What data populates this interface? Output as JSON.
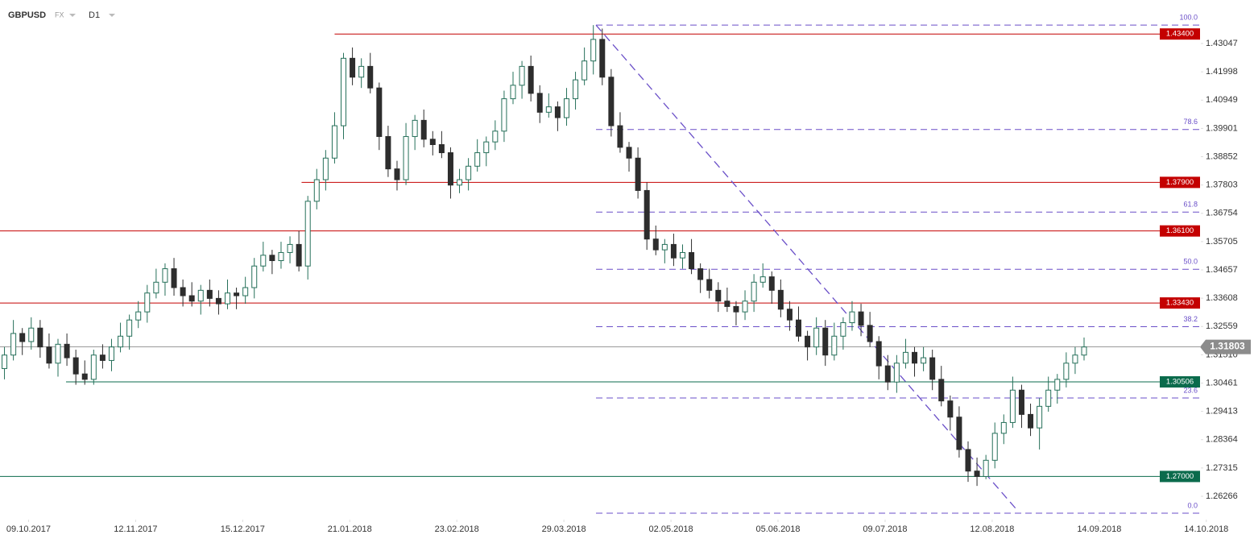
{
  "header": {
    "symbol": "GBPUSD",
    "market": "FX",
    "interval": "D1"
  },
  "chart_data": {
    "type": "candlestick",
    "up_color": "#26705a",
    "down_color": "#2d2d2d",
    "xlim": [
      -0.5,
      134.9
    ],
    "xticks": [
      {
        "value": 2.7,
        "label": "09.10.2017"
      },
      {
        "value": 14.7,
        "label": "12.11.2017"
      },
      {
        "value": 26.7,
        "label": "15.12.2017"
      },
      {
        "value": 38.7,
        "label": "21.01.2018"
      },
      {
        "value": 50.7,
        "label": "23.02.2018"
      },
      {
        "value": 62.7,
        "label": "29.03.2018"
      },
      {
        "value": 74.7,
        "label": "02.05.2018"
      },
      {
        "value": 86.7,
        "label": "05.06.2018"
      },
      {
        "value": 98.7,
        "label": "09.07.2018"
      },
      {
        "value": 110.7,
        "label": "12.08.2018"
      },
      {
        "value": 122.7,
        "label": "14.09.2018"
      },
      {
        "value": 134.7,
        "label": "14.10.2018"
      }
    ],
    "ylim": [
      1.254,
      1.4466
    ],
    "yticks": [
      1.43047,
      1.41998,
      1.40949,
      1.39901,
      1.38852,
      1.37803,
      1.36754,
      1.35705,
      1.34657,
      1.33608,
      1.32559,
      {
        "value": 1.3151,
        "label": "1.31510"
      },
      1.30461,
      1.29413,
      1.28364,
      1.27315,
      1.26266
    ],
    "open": [
      1.31,
      1.315,
      1.323,
      1.32,
      1.325,
      1.318,
      1.312,
      1.319,
      1.314,
      1.308,
      1.306,
      1.315,
      1.313,
      1.318,
      1.322,
      1.328,
      1.331,
      1.338,
      1.342,
      1.347,
      1.34,
      1.337,
      1.335,
      1.339,
      1.336,
      1.334,
      1.338,
      1.337,
      1.34,
      1.348,
      1.352,
      1.35,
      1.353,
      1.356,
      1.348,
      1.372,
      1.38,
      1.388,
      1.4,
      1.425,
      1.418,
      1.422,
      1.414,
      1.396,
      1.384,
      1.38,
      1.396,
      1.402,
      1.395,
      1.393,
      1.39,
      1.378,
      1.38,
      1.385,
      1.39,
      1.394,
      1.398,
      1.41,
      1.415,
      1.422,
      1.412,
      1.405,
      1.407,
      1.403,
      1.41,
      1.417,
      1.424,
      1.432,
      1.418,
      1.4,
      1.392,
      1.388,
      1.376,
      1.358,
      1.354,
      1.356,
      1.351,
      1.353,
      1.347,
      1.343,
      1.339,
      1.335,
      1.333,
      1.331,
      1.335,
      1.342,
      1.344,
      1.339,
      1.332,
      1.328,
      1.322,
      1.318,
      1.325,
      1.315,
      1.322,
      1.327,
      1.331,
      1.326,
      1.32,
      1.311,
      1.305,
      1.312,
      1.316,
      1.312,
      1.314,
      1.306,
      1.298,
      1.292,
      1.28,
      1.272,
      1.27,
      1.276,
      1.286,
      1.29,
      1.302,
      1.293,
      1.288,
      1.296,
      1.302,
      1.306,
      1.312,
      1.315
    ],
    "high": [
      1.318,
      1.328,
      1.325,
      1.329,
      1.328,
      1.323,
      1.321,
      1.323,
      1.317,
      1.313,
      1.317,
      1.319,
      1.321,
      1.327,
      1.33,
      1.335,
      1.341,
      1.347,
      1.349,
      1.351,
      1.343,
      1.342,
      1.341,
      1.343,
      1.339,
      1.343,
      1.34,
      1.344,
      1.351,
      1.357,
      1.354,
      1.357,
      1.359,
      1.361,
      1.374,
      1.384,
      1.391,
      1.405,
      1.427,
      1.429,
      1.425,
      1.427,
      1.416,
      1.4,
      1.387,
      1.401,
      1.404,
      1.406,
      1.398,
      1.398,
      1.392,
      1.384,
      1.388,
      1.395,
      1.396,
      1.402,
      1.413,
      1.42,
      1.424,
      1.426,
      1.415,
      1.412,
      1.409,
      1.414,
      1.42,
      1.429,
      1.4373,
      1.436,
      1.421,
      1.405,
      1.394,
      1.392,
      1.379,
      1.363,
      1.358,
      1.36,
      1.356,
      1.358,
      1.349,
      1.347,
      1.342,
      1.34,
      1.335,
      1.339,
      1.345,
      1.349,
      1.346,
      1.343,
      1.335,
      1.333,
      1.324,
      1.329,
      1.328,
      1.327,
      1.329,
      1.335,
      1.334,
      1.331,
      1.322,
      1.315,
      1.315,
      1.321,
      1.318,
      1.318,
      1.317,
      1.311,
      1.3,
      1.296,
      1.283,
      1.277,
      1.278,
      1.29,
      1.293,
      1.307,
      1.304,
      1.297,
      1.299,
      1.307,
      1.308,
      1.316,
      1.318,
      1.3215
    ],
    "low": [
      1.306,
      1.313,
      1.315,
      1.317,
      1.314,
      1.31,
      1.307,
      1.311,
      1.304,
      1.304,
      1.304,
      1.31,
      1.309,
      1.316,
      1.317,
      1.325,
      1.327,
      1.336,
      1.337,
      1.337,
      1.333,
      1.333,
      1.33,
      1.333,
      1.33,
      1.332,
      1.332,
      1.334,
      1.336,
      1.346,
      1.345,
      1.347,
      1.349,
      1.346,
      1.343,
      1.369,
      1.376,
      1.386,
      1.395,
      1.415,
      1.414,
      1.412,
      1.391,
      1.381,
      1.376,
      1.378,
      1.391,
      1.392,
      1.389,
      1.388,
      1.373,
      1.375,
      1.376,
      1.383,
      1.385,
      1.391,
      1.394,
      1.408,
      1.41,
      1.409,
      1.401,
      1.403,
      1.398,
      1.4,
      1.406,
      1.415,
      1.419,
      1.415,
      1.396,
      1.39,
      1.383,
      1.373,
      1.354,
      1.352,
      1.349,
      1.348,
      1.347,
      1.345,
      1.338,
      1.336,
      1.331,
      1.331,
      1.326,
      1.328,
      1.331,
      1.34,
      1.334,
      1.329,
      1.324,
      1.32,
      1.313,
      1.315,
      1.311,
      1.313,
      1.317,
      1.324,
      1.322,
      1.318,
      1.306,
      1.302,
      1.301,
      1.31,
      1.307,
      1.309,
      1.302,
      1.296,
      1.287,
      1.277,
      1.268,
      1.2665,
      1.269,
      1.273,
      1.282,
      1.288,
      1.288,
      1.285,
      1.28,
      1.294,
      1.297,
      1.303,
      1.308,
      1.313
    ],
    "close": [
      1.315,
      1.323,
      1.32,
      1.325,
      1.318,
      1.312,
      1.319,
      1.314,
      1.308,
      1.306,
      1.315,
      1.313,
      1.318,
      1.322,
      1.328,
      1.331,
      1.338,
      1.342,
      1.347,
      1.34,
      1.337,
      1.335,
      1.339,
      1.336,
      1.334,
      1.338,
      1.337,
      1.34,
      1.348,
      1.352,
      1.35,
      1.353,
      1.356,
      1.348,
      1.372,
      1.38,
      1.388,
      1.4,
      1.425,
      1.418,
      1.422,
      1.414,
      1.396,
      1.384,
      1.38,
      1.396,
      1.402,
      1.395,
      1.393,
      1.39,
      1.378,
      1.38,
      1.385,
      1.39,
      1.394,
      1.398,
      1.41,
      1.415,
      1.422,
      1.412,
      1.405,
      1.407,
      1.403,
      1.41,
      1.417,
      1.424,
      1.432,
      1.418,
      1.4,
      1.392,
      1.388,
      1.376,
      1.358,
      1.354,
      1.356,
      1.351,
      1.353,
      1.347,
      1.343,
      1.339,
      1.335,
      1.333,
      1.331,
      1.335,
      1.342,
      1.344,
      1.339,
      1.332,
      1.328,
      1.322,
      1.318,
      1.325,
      1.315,
      1.322,
      1.327,
      1.331,
      1.326,
      1.32,
      1.311,
      1.305,
      1.312,
      1.316,
      1.312,
      1.314,
      1.306,
      1.298,
      1.292,
      1.28,
      1.272,
      1.27,
      1.276,
      1.286,
      1.29,
      1.302,
      1.293,
      1.288,
      1.296,
      1.302,
      1.306,
      1.312,
      1.315,
      1.318
    ],
    "levels": [
      {
        "value": 1.434,
        "label": "1.43400",
        "color": "#c40000",
        "start": 37
      },
      {
        "value": 1.379,
        "label": "1.37900",
        "color": "#c40000",
        "start": 33.3
      },
      {
        "value": 1.361,
        "label": "1.36100",
        "color": "#c40000",
        "start": -0.5
      },
      {
        "value": 1.3343,
        "label": "1.33430",
        "color": "#c40000",
        "start": -0.5
      },
      {
        "value": 1.30506,
        "label": "1.30506",
        "color": "#0b6b4c",
        "start": 6.9
      },
      {
        "value": 1.27,
        "label": "1.27000",
        "color": "#0b6b4c",
        "start": -0.5
      }
    ],
    "fib": {
      "color": "#6a4fc8",
      "start": 66.3,
      "levels": [
        {
          "value": 1.4373,
          "label": "100.0"
        },
        {
          "value": 1.3986,
          "label": "78.6"
        },
        {
          "value": 1.368,
          "label": "61.8"
        },
        {
          "value": 1.3468,
          "label": "50.0"
        },
        {
          "value": 1.3255,
          "label": "38.2"
        },
        {
          "value": 1.2991,
          "label": "23.6"
        },
        {
          "value": 1.2564,
          "label": "0.0"
        }
      ]
    },
    "trendline": {
      "x": [
        66.3,
        113.4
      ],
      "y": [
        1.4373,
        1.2579
      ]
    },
    "current_price": 1.31803,
    "current_color": "#8c8c8c"
  }
}
